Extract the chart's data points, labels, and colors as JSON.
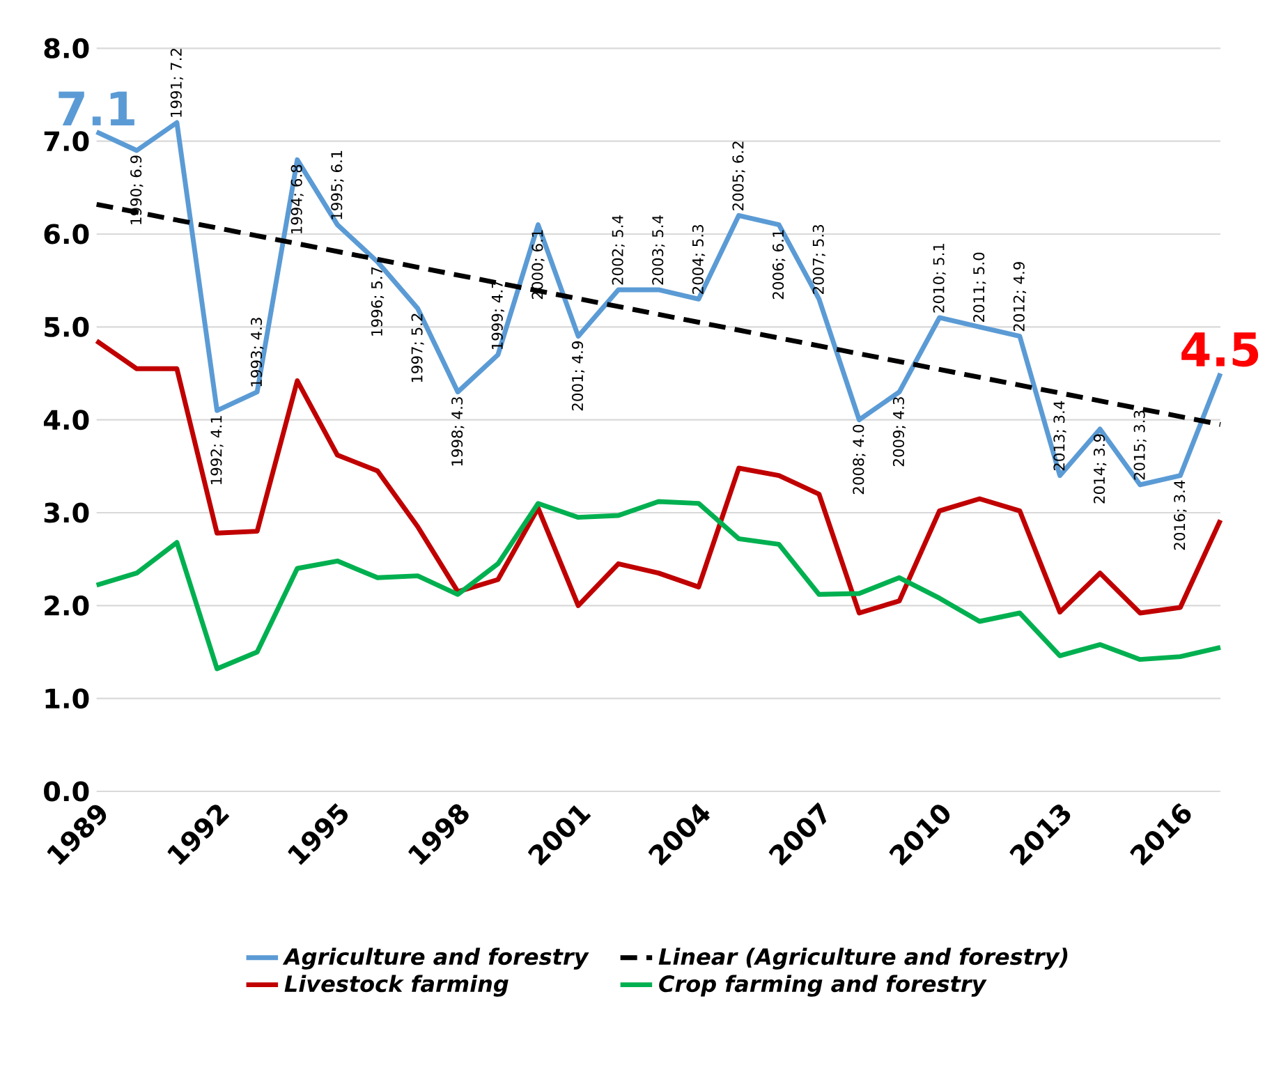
{
  "chart_data": {
    "type": "line",
    "x": [
      1989,
      1990,
      1991,
      1992,
      1993,
      1994,
      1995,
      1996,
      1997,
      1998,
      1999,
      2000,
      2001,
      2002,
      2003,
      2004,
      2005,
      2006,
      2007,
      2008,
      2009,
      2010,
      2011,
      2012,
      2013,
      2014,
      2015,
      2016,
      2017
    ],
    "xlim": [
      1989,
      2017
    ],
    "xticks": [
      1989,
      1992,
      1995,
      1998,
      2001,
      2004,
      2007,
      2010,
      2013,
      2016
    ],
    "ylim": [
      0,
      8
    ],
    "yticks": [
      {
        "value": 0,
        "label": "0.0"
      },
      {
        "value": 1,
        "label": "1.0"
      },
      {
        "value": 2,
        "label": "2.0"
      },
      {
        "value": 3,
        "label": "3.0"
      },
      {
        "value": 4,
        "label": "4.0"
      },
      {
        "value": 5,
        "label": "5.0"
      },
      {
        "value": 6,
        "label": "6.0"
      },
      {
        "value": 7,
        "label": "7.0"
      },
      {
        "value": 8,
        "label": "8.0"
      }
    ],
    "grid": "y",
    "legend": "bottom",
    "series": [
      {
        "name": "Agriculture and forestry",
        "color": "#5b9bd5",
        "values": [
          7.1,
          6.9,
          7.2,
          4.1,
          4.3,
          6.8,
          6.1,
          5.7,
          5.2,
          4.3,
          4.7,
          6.1,
          4.9,
          5.4,
          5.4,
          5.3,
          6.2,
          6.1,
          5.3,
          4.0,
          4.3,
          5.1,
          5.0,
          4.9,
          3.4,
          3.9,
          3.3,
          3.4,
          4.5
        ],
        "value_labels": [
          "7.1",
          "1990; 6.9",
          "1991; 7.2",
          "1992; 4.1",
          "1993; 4.3",
          "1994; 6.8",
          "1995; 6.1",
          "1996; 5.7",
          "1997; 5.2",
          "1998; 4.3",
          "1999; 4.7",
          "2000; 6.1",
          "2001; 4.9",
          "2002; 5.4",
          "2003; 5.4",
          "2004; 5.3",
          "2005; 6.2",
          "2006; 6.1",
          "2007; 5.3",
          "2008; 4.0",
          "2009; 4.3",
          "2010; 5.1",
          "2011; 5.0",
          "2012; 4.9",
          "2013; 3.4",
          "2014; 3.9",
          "2015; 3.3",
          "2016; 3.4",
          "4.5"
        ]
      },
      {
        "name": "Linear (Agriculture and forestry)",
        "type": "line",
        "line_style": "dashed",
        "color": "#000000",
        "x": [
          1989,
          2017
        ],
        "values": [
          6.32,
          3.95
        ]
      },
      {
        "name": "Livestock farming",
        "color": "#c00000",
        "values": [
          4.85,
          4.55,
          4.55,
          2.78,
          2.8,
          4.42,
          3.62,
          3.45,
          2.85,
          2.15,
          2.28,
          3.05,
          2.0,
          2.45,
          2.35,
          2.2,
          3.48,
          3.4,
          3.2,
          1.92,
          2.05,
          3.02,
          3.15,
          3.02,
          1.93,
          2.35,
          1.92,
          1.98,
          2.92
        ]
      },
      {
        "name": "Crop farming and forestry",
        "color": "#00b050",
        "values": [
          2.22,
          2.35,
          2.68,
          1.32,
          1.5,
          2.4,
          2.48,
          2.3,
          2.32,
          2.12,
          2.45,
          3.1,
          2.95,
          2.97,
          3.12,
          3.1,
          2.72,
          2.66,
          2.12,
          2.13,
          2.3,
          2.08,
          1.83,
          1.92,
          1.46,
          1.58,
          1.42,
          1.45,
          1.55
        ]
      }
    ]
  }
}
